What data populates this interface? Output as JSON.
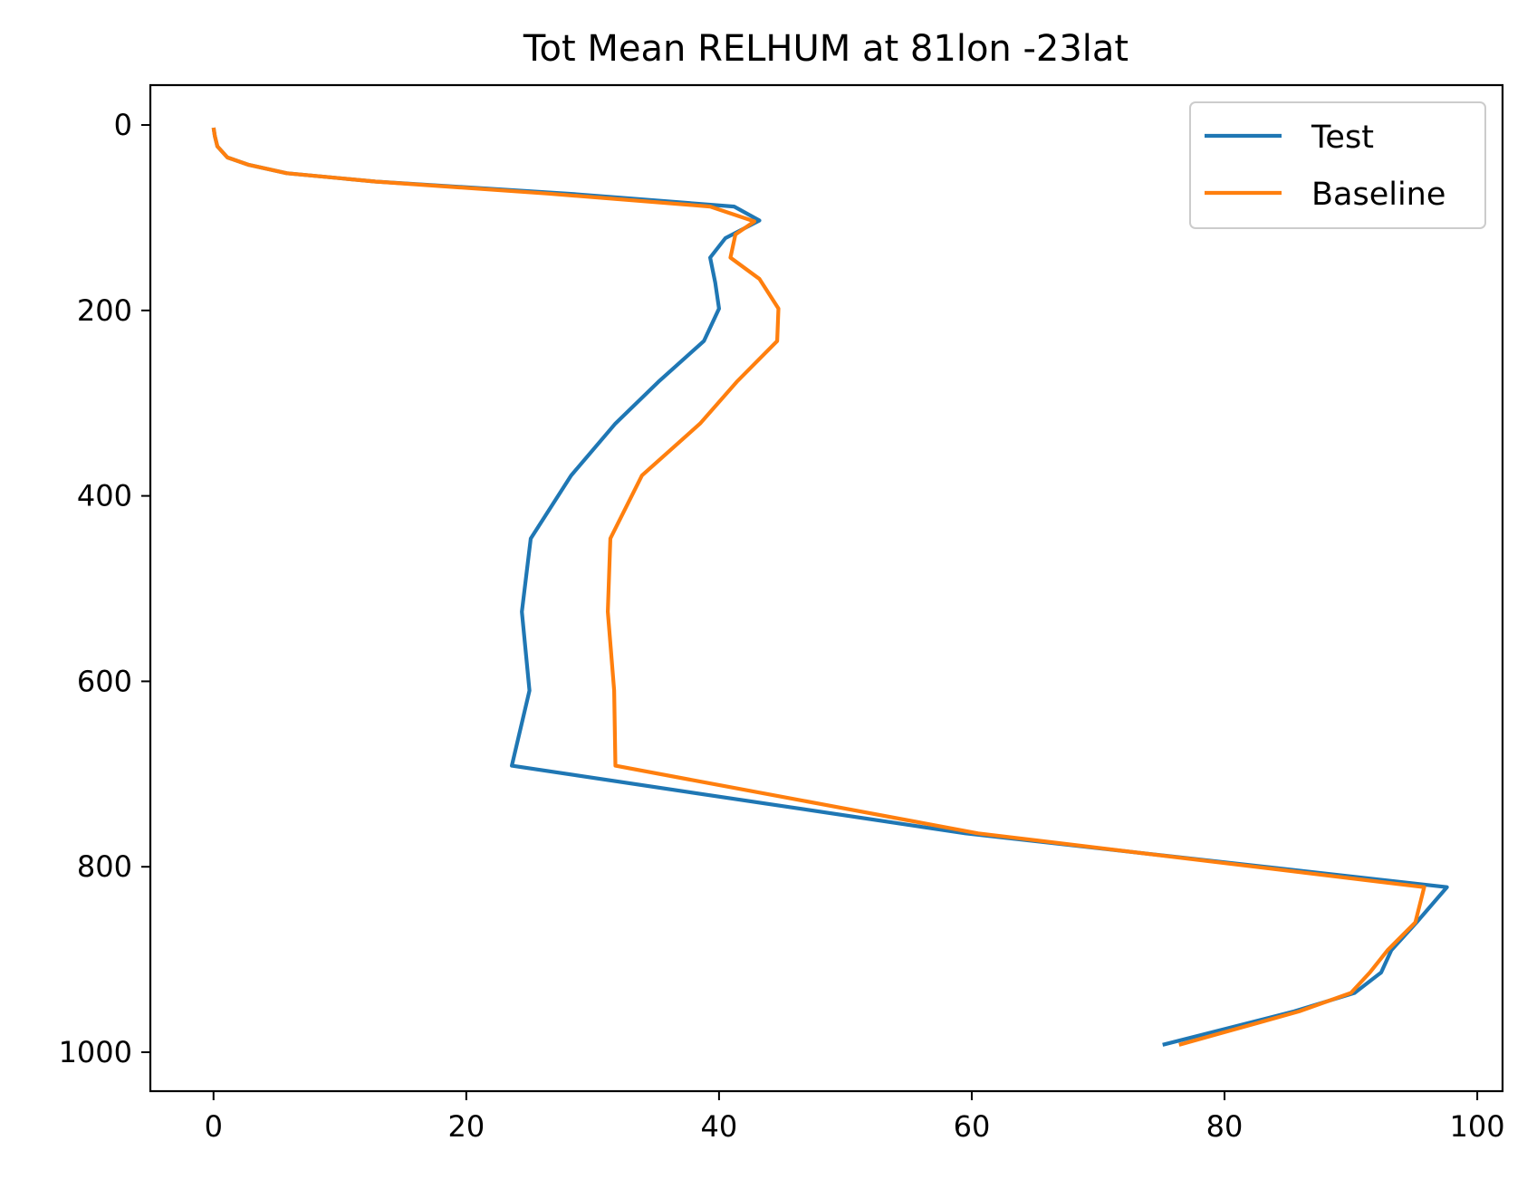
{
  "chart_data": {
    "type": "line",
    "title": "Tot Mean RELHUM at 81lon -23lat",
    "xlabel": "",
    "ylabel": "",
    "xlim": [
      -5,
      102
    ],
    "ylim": [
      1042,
      -43
    ],
    "y_inverted": true,
    "x_ticks": [
      0,
      20,
      40,
      60,
      80,
      100
    ],
    "y_ticks": [
      0,
      200,
      400,
      600,
      800,
      1000
    ],
    "grid": false,
    "legend_position": "top-right",
    "series": [
      {
        "name": "Test",
        "color": "#1f77b4",
        "points": [
          {
            "x": 0.0,
            "y": 3
          },
          {
            "x": 0.1,
            "y": 12
          },
          {
            "x": 0.3,
            "y": 23
          },
          {
            "x": 1.1,
            "y": 35
          },
          {
            "x": 2.8,
            "y": 43
          },
          {
            "x": 5.8,
            "y": 52
          },
          {
            "x": 12.8,
            "y": 61
          },
          {
            "x": 28.0,
            "y": 74
          },
          {
            "x": 41.2,
            "y": 88
          },
          {
            "x": 43.2,
            "y": 103
          },
          {
            "x": 40.5,
            "y": 122
          },
          {
            "x": 39.3,
            "y": 143
          },
          {
            "x": 39.7,
            "y": 170
          },
          {
            "x": 40.0,
            "y": 198
          },
          {
            "x": 38.8,
            "y": 233
          },
          {
            "x": 35.2,
            "y": 277
          },
          {
            "x": 31.8,
            "y": 322
          },
          {
            "x": 28.3,
            "y": 378
          },
          {
            "x": 25.1,
            "y": 446
          },
          {
            "x": 24.4,
            "y": 525
          },
          {
            "x": 25.0,
            "y": 610
          },
          {
            "x": 23.6,
            "y": 691
          },
          {
            "x": 59.5,
            "y": 764
          },
          {
            "x": 97.6,
            "y": 822
          },
          {
            "x": 95.2,
            "y": 860
          },
          {
            "x": 93.2,
            "y": 890
          },
          {
            "x": 92.4,
            "y": 914
          },
          {
            "x": 90.3,
            "y": 936
          },
          {
            "x": 85.5,
            "y": 956
          },
          {
            "x": 75.1,
            "y": 992
          }
        ]
      },
      {
        "name": "Baseline",
        "color": "#ff7f0e",
        "points": [
          {
            "x": 0.0,
            "y": 3
          },
          {
            "x": 0.1,
            "y": 12
          },
          {
            "x": 0.3,
            "y": 23
          },
          {
            "x": 1.1,
            "y": 35
          },
          {
            "x": 2.8,
            "y": 43
          },
          {
            "x": 5.8,
            "y": 52
          },
          {
            "x": 12.8,
            "y": 61
          },
          {
            "x": 26.5,
            "y": 74
          },
          {
            "x": 39.3,
            "y": 88
          },
          {
            "x": 42.8,
            "y": 104
          },
          {
            "x": 41.3,
            "y": 118
          },
          {
            "x": 40.9,
            "y": 143
          },
          {
            "x": 43.2,
            "y": 166
          },
          {
            "x": 44.7,
            "y": 198
          },
          {
            "x": 44.6,
            "y": 233
          },
          {
            "x": 41.4,
            "y": 277
          },
          {
            "x": 38.5,
            "y": 322
          },
          {
            "x": 33.9,
            "y": 378
          },
          {
            "x": 31.4,
            "y": 446
          },
          {
            "x": 31.2,
            "y": 525
          },
          {
            "x": 31.7,
            "y": 610
          },
          {
            "x": 31.8,
            "y": 691
          },
          {
            "x": 60.5,
            "y": 764
          },
          {
            "x": 95.8,
            "y": 822
          },
          {
            "x": 95.1,
            "y": 860
          },
          {
            "x": 92.9,
            "y": 890
          },
          {
            "x": 91.5,
            "y": 914
          },
          {
            "x": 90.0,
            "y": 936
          },
          {
            "x": 85.9,
            "y": 956
          },
          {
            "x": 76.4,
            "y": 992
          }
        ]
      }
    ]
  }
}
